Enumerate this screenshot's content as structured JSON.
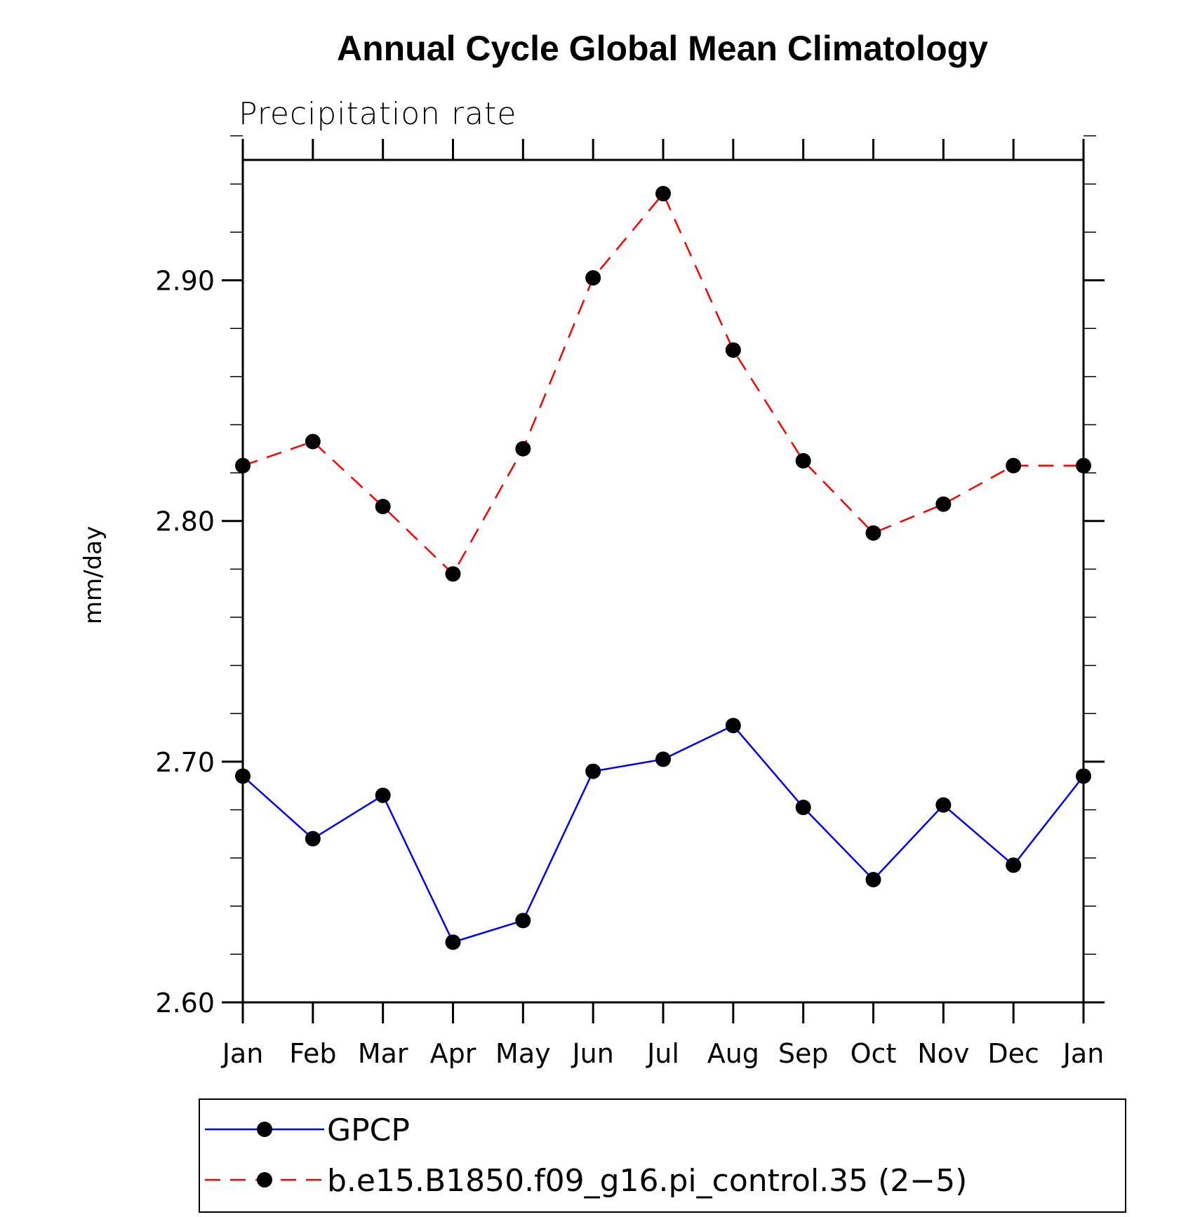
{
  "chart_data": {
    "type": "line",
    "title": "Annual Cycle Global Mean Climatology",
    "subtitle": "Precipitation rate",
    "xlabel": "",
    "ylabel": "mm/day",
    "categories": [
      "Jan",
      "Feb",
      "Mar",
      "Apr",
      "May",
      "Jun",
      "Jul",
      "Aug",
      "Sep",
      "Oct",
      "Nov",
      "Dec",
      "Jan"
    ],
    "ylim": [
      2.6,
      2.95
    ],
    "yticks": [
      "2.60",
      "2.70",
      "2.80",
      "2.90"
    ],
    "grid": false,
    "legend_position": "bottom",
    "series": [
      {
        "name": "GPCP",
        "color": "#0000ff",
        "line_style": "solid",
        "marker": "filled-circle",
        "values": [
          2.694,
          2.668,
          2.686,
          2.625,
          2.634,
          2.696,
          2.701,
          2.715,
          2.681,
          2.651,
          2.682,
          2.657,
          2.694
        ]
      },
      {
        "name": "b.e15.B1850.f09_g16.pi_control.35 (2−5)",
        "color": "#ff0000",
        "line_style": "dashed",
        "marker": "filled-circle",
        "values": [
          2.823,
          2.833,
          2.806,
          2.778,
          2.83,
          2.901,
          2.936,
          2.871,
          2.825,
          2.795,
          2.807,
          2.823,
          2.823
        ]
      }
    ]
  }
}
